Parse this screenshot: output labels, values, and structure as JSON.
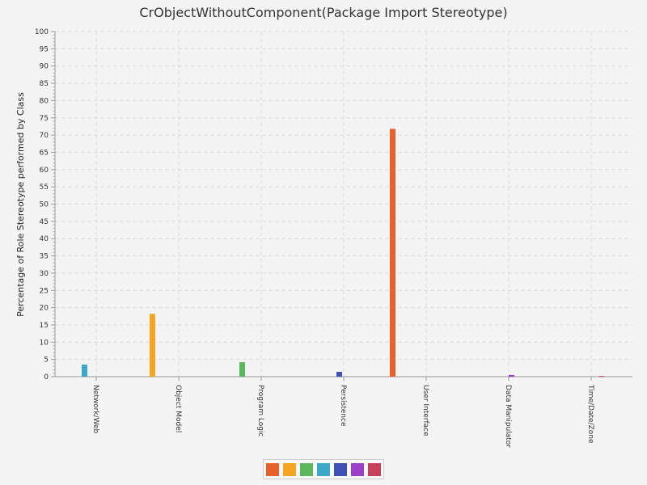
{
  "chart_data": {
    "type": "bar",
    "title": "CrObjectWithoutComponent(Package Import Stereotype)",
    "xlabel": "",
    "ylabel": "Percentage of Role Stereotype performed by Class",
    "ylim": [
      0,
      100
    ],
    "ytick_step": 5,
    "grid": true,
    "legend_position": "bottom",
    "categories": [
      "Network/Web",
      "Object Model",
      "Program Logic",
      "Persistence",
      "User Interface",
      "Data Manipulator",
      "Time/Date/Zone"
    ],
    "series": [
      {
        "color": "#e8602c",
        "values": [
          0,
          0,
          0,
          0,
          71.8,
          0,
          0
        ]
      },
      {
        "color": "#f4a522",
        "values": [
          0,
          18.2,
          0,
          0,
          0,
          0,
          0
        ]
      },
      {
        "color": "#5cb85c",
        "values": [
          0,
          0,
          4.2,
          0,
          0,
          0,
          0
        ]
      },
      {
        "color": "#3ea8c8",
        "values": [
          3.5,
          0,
          0,
          0,
          0,
          0,
          0
        ]
      },
      {
        "color": "#3f51b5",
        "values": [
          0,
          0,
          0,
          1.4,
          0,
          0,
          0
        ]
      },
      {
        "color": "#9c40c8",
        "values": [
          0,
          0,
          0,
          0,
          0,
          0.5,
          0
        ]
      },
      {
        "color": "#c8405c",
        "values": [
          0,
          0,
          0,
          0,
          0,
          0,
          0.2
        ]
      }
    ]
  }
}
